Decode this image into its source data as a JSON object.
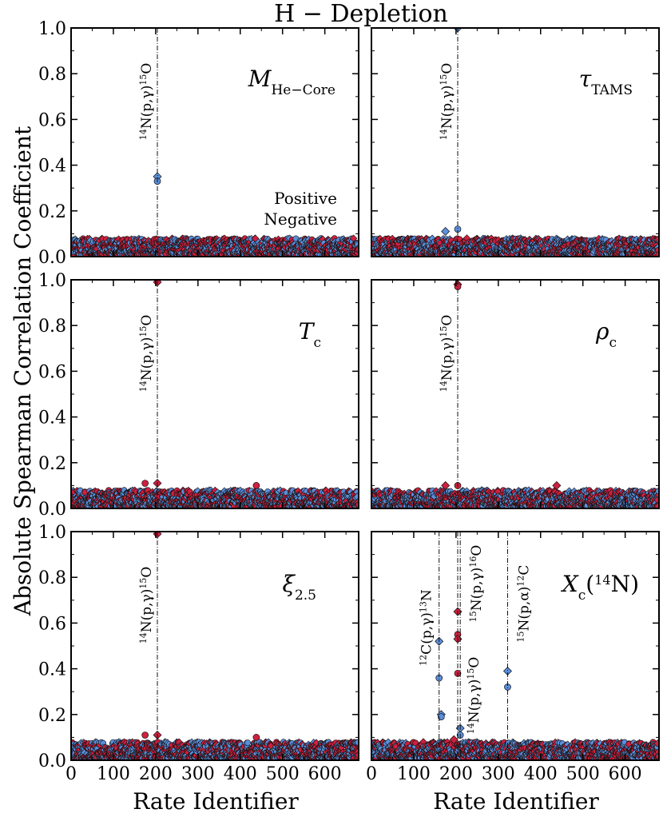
{
  "figure": {
    "title": "H − Depletion",
    "ylabel": "Absolute Spearman Correlation Coefficient",
    "xlabel": "Rate Identifier",
    "legend": {
      "positive_label": "Positive",
      "negative_label": "Negative",
      "positive_color": "#5b8fdc",
      "negative_color": "#d0203f"
    }
  },
  "chart_data": [
    {
      "type": "scatter",
      "panel": "M_He-Core",
      "label_main": "M",
      "label_sub": "He−Core",
      "xlim": [
        0,
        680
      ],
      "ylim": [
        0,
        1.0
      ],
      "xticks": [
        0,
        100,
        200,
        300,
        400,
        500,
        600
      ],
      "yticks": [
        0.0,
        0.2,
        0.4,
        0.6,
        0.8,
        1.0
      ],
      "highlights": [
        {
          "x": 204,
          "label": "14N(p,γ)15O"
        }
      ],
      "points": [
        {
          "x": 204,
          "y": 0.35,
          "sign": "positive"
        },
        {
          "x": 204,
          "y": 0.33,
          "sign": "positive"
        }
      ],
      "background_noise_max": 0.1
    },
    {
      "type": "scatter",
      "panel": "tau_TAMS",
      "label_main": "τ",
      "label_sub": "TAMS",
      "xlim": [
        0,
        680
      ],
      "ylim": [
        0,
        1.0
      ],
      "xticks": [
        0,
        100,
        200,
        300,
        400,
        500,
        600
      ],
      "yticks": [
        0.0,
        0.2,
        0.4,
        0.6,
        0.8,
        1.0
      ],
      "highlights": [
        {
          "x": 204,
          "label": "14N(p,γ)15O"
        }
      ],
      "points": [
        {
          "x": 204,
          "y": 1.0,
          "sign": "positive"
        },
        {
          "x": 204,
          "y": 0.12,
          "sign": "positive"
        },
        {
          "x": 175,
          "y": 0.11,
          "sign": "positive"
        }
      ],
      "background_noise_max": 0.1
    },
    {
      "type": "scatter",
      "panel": "T_c",
      "label_main": "T",
      "label_sub": "c",
      "xlim": [
        0,
        680
      ],
      "ylim": [
        0,
        1.0
      ],
      "xticks": [
        0,
        100,
        200,
        300,
        400,
        500,
        600
      ],
      "yticks": [
        0.0,
        0.2,
        0.4,
        0.6,
        0.8,
        1.0
      ],
      "highlights": [
        {
          "x": 204,
          "label": "14N(p,γ)15O"
        }
      ],
      "points": [
        {
          "x": 204,
          "y": 0.99,
          "sign": "negative"
        },
        {
          "x": 175,
          "y": 0.11,
          "sign": "negative"
        },
        {
          "x": 204,
          "y": 0.11,
          "sign": "negative"
        },
        {
          "x": 438,
          "y": 0.1,
          "sign": "negative"
        }
      ],
      "background_noise_max": 0.1
    },
    {
      "type": "scatter",
      "panel": "rho_c",
      "label_main": "ρ",
      "label_sub": "c",
      "xlim": [
        0,
        680
      ],
      "ylim": [
        0,
        1.0
      ],
      "xticks": [
        0,
        100,
        200,
        300,
        400,
        500,
        600
      ],
      "yticks": [
        0.0,
        0.2,
        0.4,
        0.6,
        0.8,
        1.0
      ],
      "highlights": [
        {
          "x": 204,
          "label": "14N(p,γ)15O"
        }
      ],
      "points": [
        {
          "x": 204,
          "y": 0.98,
          "sign": "negative"
        },
        {
          "x": 204,
          "y": 0.97,
          "sign": "negative"
        },
        {
          "x": 175,
          "y": 0.1,
          "sign": "negative"
        },
        {
          "x": 204,
          "y": 0.1,
          "sign": "negative"
        },
        {
          "x": 438,
          "y": 0.1,
          "sign": "negative"
        }
      ],
      "background_noise_max": 0.1
    },
    {
      "type": "scatter",
      "panel": "xi_2.5",
      "label_main": "ξ",
      "label_sub": "2.5",
      "xlim": [
        0,
        680
      ],
      "ylim": [
        0,
        1.0
      ],
      "xticks": [
        0,
        100,
        200,
        300,
        400,
        500,
        600
      ],
      "yticks": [
        0.0,
        0.2,
        0.4,
        0.6,
        0.8,
        1.0
      ],
      "highlights": [
        {
          "x": 204,
          "label": "14N(p,γ)15O"
        }
      ],
      "points": [
        {
          "x": 204,
          "y": 0.99,
          "sign": "negative"
        },
        {
          "x": 175,
          "y": 0.11,
          "sign": "negative"
        },
        {
          "x": 204,
          "y": 0.11,
          "sign": "negative"
        },
        {
          "x": 438,
          "y": 0.1,
          "sign": "negative"
        }
      ],
      "background_noise_max": 0.1
    },
    {
      "type": "scatter",
      "panel": "X_c(14N)",
      "label_main": "X",
      "label_sub": "c",
      "label_tail": "(14N)",
      "xlim": [
        0,
        680
      ],
      "ylim": [
        0,
        1.0
      ],
      "xticks": [
        0,
        100,
        200,
        300,
        400,
        500,
        600
      ],
      "yticks": [
        0.0,
        0.2,
        0.4,
        0.6,
        0.8,
        1.0
      ],
      "highlights": [
        {
          "x": 160,
          "label": "12C(p,γ)13N"
        },
        {
          "x": 204,
          "label": "14N(p,γ)15O"
        },
        {
          "x": 210,
          "label": "15N(p,γ)16O"
        },
        {
          "x": 322,
          "label": "15N(p,α)12C"
        }
      ],
      "points": [
        {
          "x": 160,
          "y": 0.52,
          "sign": "positive"
        },
        {
          "x": 160,
          "y": 0.36,
          "sign": "positive"
        },
        {
          "x": 165,
          "y": 0.2,
          "sign": "positive"
        },
        {
          "x": 165,
          "y": 0.19,
          "sign": "positive"
        },
        {
          "x": 204,
          "y": 0.65,
          "sign": "negative"
        },
        {
          "x": 204,
          "y": 0.55,
          "sign": "negative"
        },
        {
          "x": 204,
          "y": 0.53,
          "sign": "negative"
        },
        {
          "x": 204,
          "y": 0.38,
          "sign": "negative"
        },
        {
          "x": 210,
          "y": 0.14,
          "sign": "positive"
        },
        {
          "x": 210,
          "y": 0.11,
          "sign": "positive"
        },
        {
          "x": 322,
          "y": 0.39,
          "sign": "positive"
        },
        {
          "x": 322,
          "y": 0.32,
          "sign": "positive"
        },
        {
          "x": 195,
          "y": 0.09,
          "sign": "negative"
        }
      ],
      "background_noise_max": 0.1
    }
  ]
}
